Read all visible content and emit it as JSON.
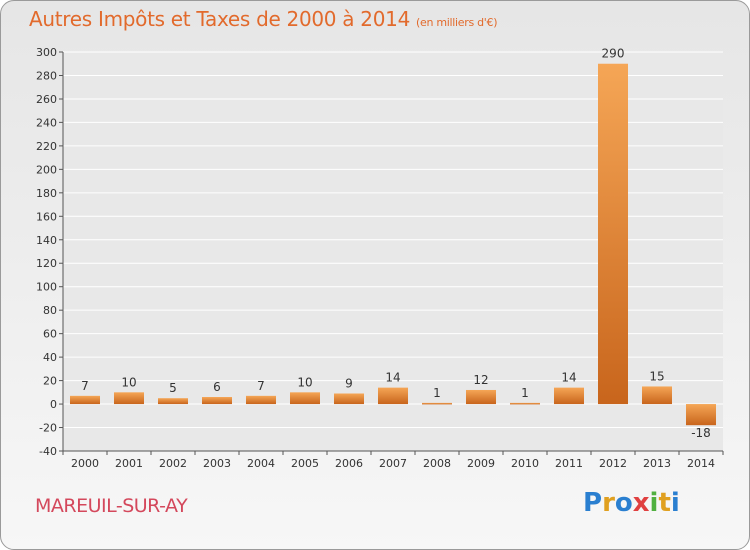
{
  "title": "Autres Impôts et Taxes de 2000 à 2014",
  "title_unit": "(en milliers d'€)",
  "town": "MAREUIL-SUR-AY",
  "brand": {
    "letters": [
      "P",
      "r",
      "o",
      "x",
      "i",
      "t",
      "i"
    ],
    "colors": [
      "#2a7fd0",
      "#e0a020",
      "#2a7fd0",
      "#e04040",
      "#50b040",
      "#e0a020",
      "#2a7fd0"
    ]
  },
  "colors": {
    "title": "#e26a2c",
    "town": "#d4485c",
    "bar_light": "#f5a656",
    "bar_dark": "#c8651c",
    "grid": "#ffffff",
    "axis_text": "#333333"
  },
  "chart_data": {
    "type": "bar",
    "categories": [
      "2000",
      "2001",
      "2002",
      "2003",
      "2004",
      "2005",
      "2006",
      "2007",
      "2008",
      "2009",
      "2010",
      "2011",
      "2012",
      "2013",
      "2014"
    ],
    "values": [
      7,
      10,
      5,
      6,
      7,
      10,
      9,
      14,
      1,
      12,
      1,
      14,
      290,
      15,
      -18
    ],
    "data_labels": [
      "7",
      "10",
      "5",
      "6",
      "7",
      "10",
      "9",
      "14",
      "1",
      "12",
      "1",
      "14",
      "290",
      "15",
      "-18"
    ],
    "title": "Autres Impôts et Taxes de 2000 à 2014",
    "xlabel": "",
    "ylabel": "",
    "ylim": [
      -40,
      300
    ],
    "yticks": [
      -40,
      -20,
      0,
      20,
      40,
      60,
      80,
      100,
      120,
      140,
      160,
      180,
      200,
      220,
      240,
      260,
      280,
      300
    ],
    "grid": true,
    "legend": "none"
  }
}
